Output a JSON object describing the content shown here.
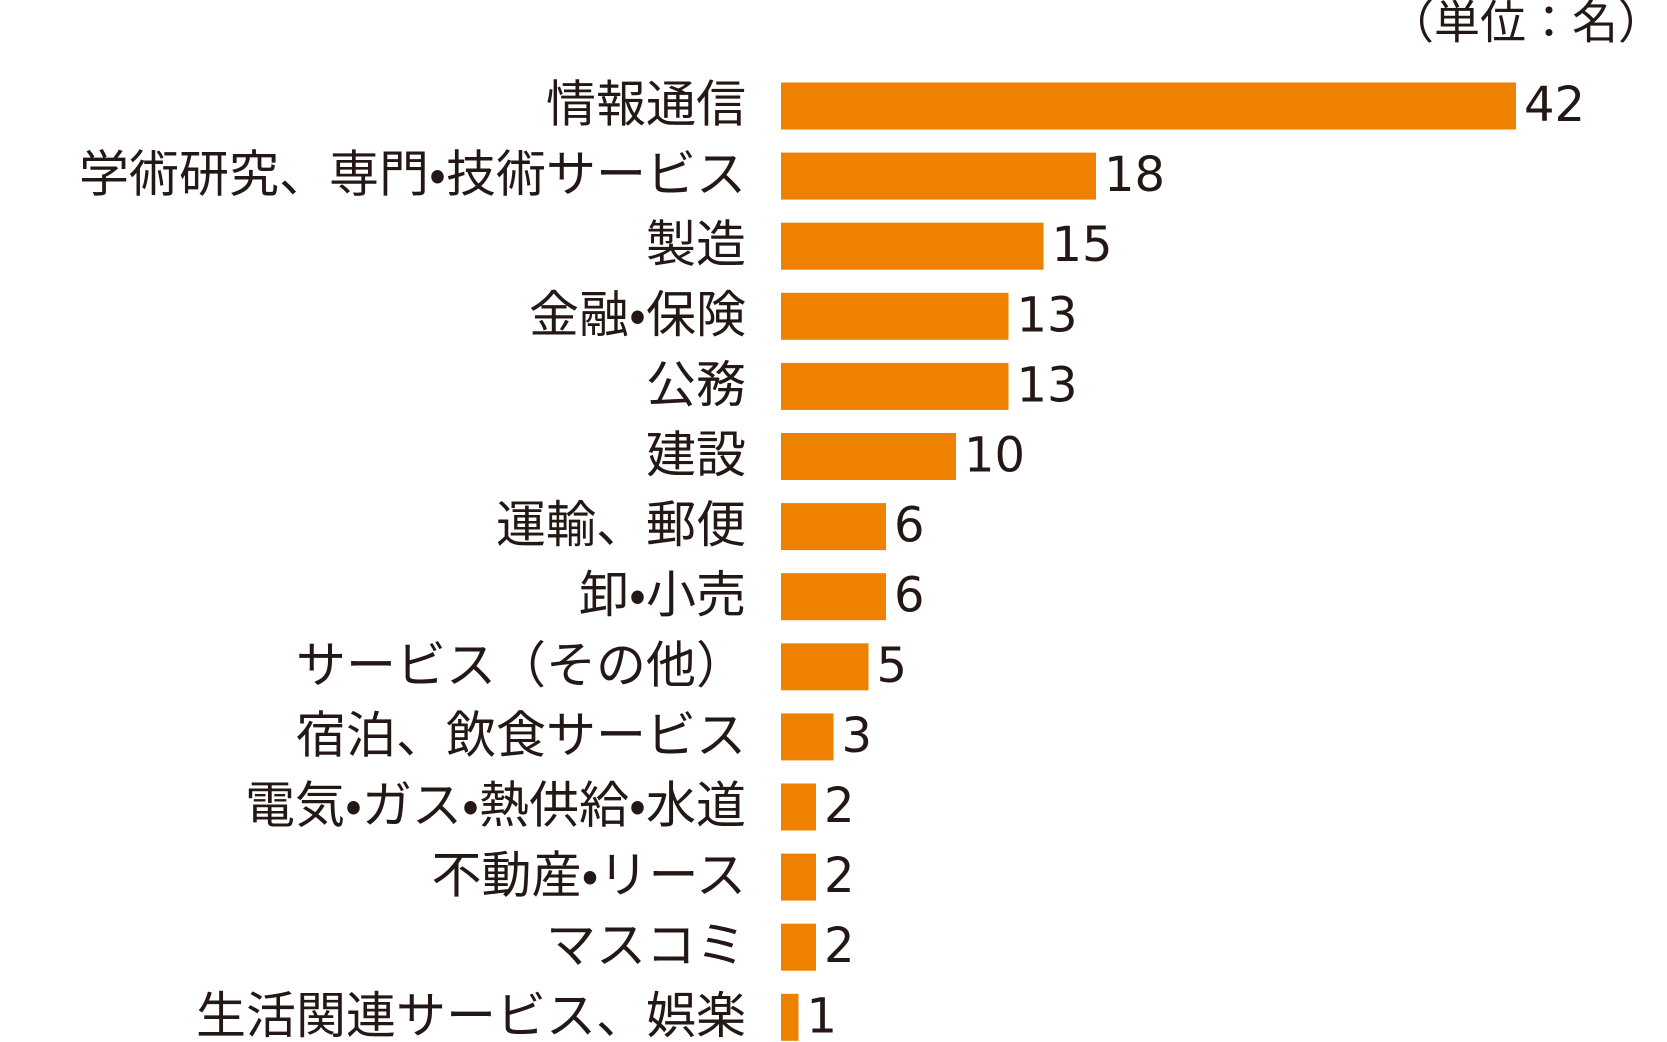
{
  "chart_data": {
    "type": "hbar",
    "unit_note": "（単位：名）",
    "categories": [
      "情報通信",
      "学術研究、専門・技術サービス",
      "製造",
      "金融・保険",
      "公務",
      "建設",
      "運輸、郵便",
      "卸・小売",
      "サービス（その他）",
      "宿泊、飲食サービス",
      "電気・ガス・熱供給・水道",
      "不動産・リース",
      "マスコミ",
      "生活関連サービス、娯楽"
    ],
    "values": [
      42,
      18,
      15,
      13,
      13,
      10,
      6,
      6,
      5,
      3,
      2,
      2,
      2,
      1
    ],
    "color": "#ee8200"
  }
}
